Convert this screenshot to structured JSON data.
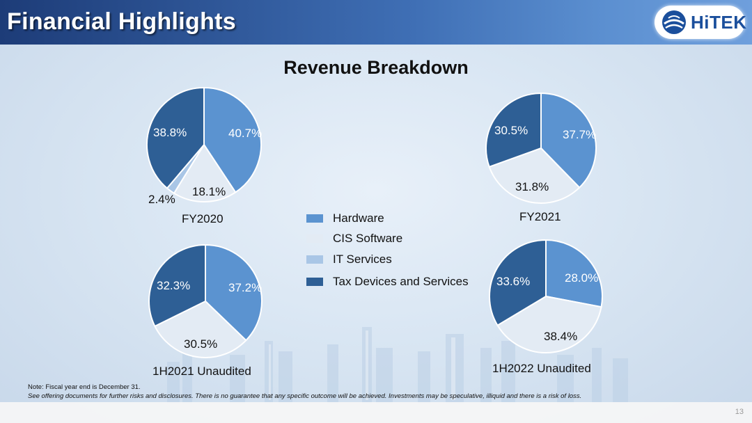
{
  "header": {
    "title": "Financial Highlights",
    "logo_text": "HiTEK"
  },
  "colors": {
    "hardware": "#5b93d0",
    "cis_software": "#e3ebf4",
    "it_services": "#a9c6e6",
    "tax_devices": "#2e5f95"
  },
  "chart_data": [
    {
      "type": "pie",
      "title": "FY2020",
      "slices": [
        {
          "name": "Hardware",
          "value": 40.7,
          "label": "40.7%"
        },
        {
          "name": "CIS Software",
          "value": 18.1,
          "label": "18.1%"
        },
        {
          "name": "IT Services",
          "value": 2.4,
          "label": "2.4%"
        },
        {
          "name": "Tax Devices and Services",
          "value": 38.8,
          "label": "38.8%"
        }
      ]
    },
    {
      "type": "pie",
      "title": "FY2021",
      "slices": [
        {
          "name": "Hardware",
          "value": 37.7,
          "label": "37.7%"
        },
        {
          "name": "CIS Software",
          "value": 31.8,
          "label": "31.8%"
        },
        {
          "name": "Tax Devices and Services",
          "value": 30.5,
          "label": "30.5%"
        }
      ]
    },
    {
      "type": "pie",
      "title": "1H2021 Unaudited",
      "slices": [
        {
          "name": "Hardware",
          "value": 37.2,
          "label": "37.2%"
        },
        {
          "name": "CIS Software",
          "value": 30.5,
          "label": "30.5%"
        },
        {
          "name": "Tax Devices and Services",
          "value": 32.3,
          "label": "32.3%"
        }
      ]
    },
    {
      "type": "pie",
      "title": "1H2022 Unaudited",
      "slices": [
        {
          "name": "Hardware",
          "value": 28.0,
          "label": "28.0%"
        },
        {
          "name": "CIS Software",
          "value": 38.4,
          "label": "38.4%"
        },
        {
          "name": "Tax Devices and Services",
          "value": 33.6,
          "label": "33.6%"
        }
      ]
    }
  ],
  "chart_title": "Revenue Breakdown",
  "legend": [
    {
      "label": "Hardware",
      "color": "#5b93d0"
    },
    {
      "label": "CIS Software",
      "color": "#e3ebf4"
    },
    {
      "label": "IT Services",
      "color": "#a9c6e6"
    },
    {
      "label": "Tax Devices and Services",
      "color": "#2e5f95"
    }
  ],
  "notes": {
    "line1": "Note: Fiscal year end is December 31.",
    "line2": "See offering documents for further risks and disclosures. There is no guarantee that any specific outcome will be achieved. Investments may be speculative, illiquid and there is a risk of loss."
  },
  "page_number": "13"
}
